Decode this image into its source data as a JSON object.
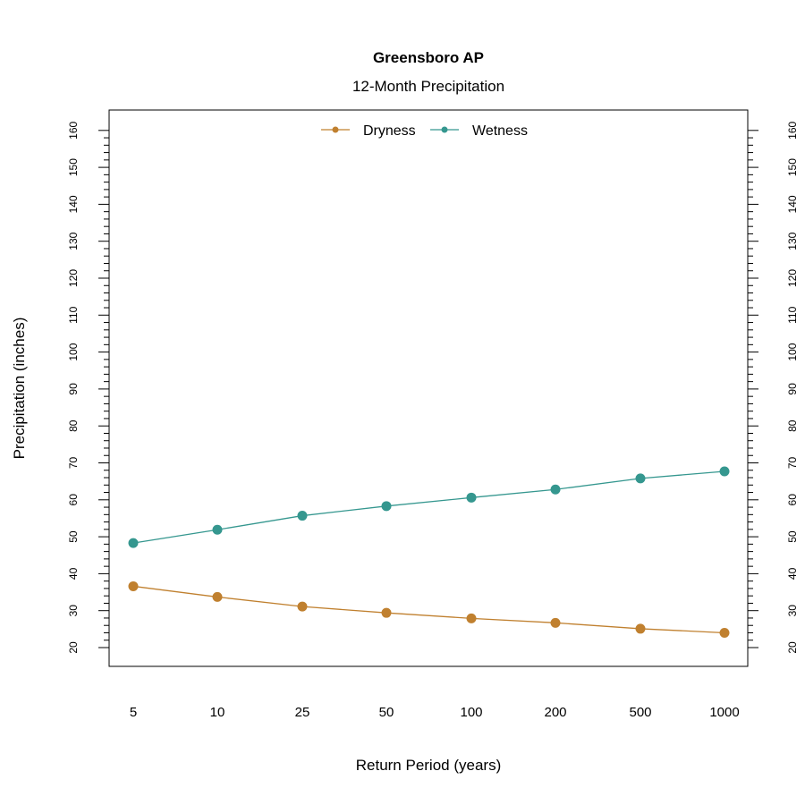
{
  "chart_data": {
    "type": "line",
    "title": "Greensboro  AP",
    "subtitle": "12-Month Precipitation",
    "xlabel": "Return Period (years)",
    "ylabel": "Precipitation (inches)",
    "categories": [
      "5",
      "10",
      "25",
      "50",
      "100",
      "200",
      "500",
      "1000"
    ],
    "ylim": [
      20,
      160
    ],
    "y_ticks": [
      "20",
      "30",
      "40",
      "50",
      "60",
      "70",
      "80",
      "90",
      "100",
      "110",
      "120",
      "130",
      "140",
      "150",
      "160"
    ],
    "y_axis_right": true,
    "grid": false,
    "legend_position": "top-center",
    "series": [
      {
        "name": "Dryness",
        "color": "#C0802F",
        "values": [
          36.6,
          33.7,
          31.1,
          29.4,
          27.9,
          26.7,
          25.1,
          24.0
        ]
      },
      {
        "name": "Wetness",
        "color": "#35978F",
        "values": [
          48.3,
          51.9,
          55.7,
          58.3,
          60.6,
          62.8,
          65.8,
          67.7
        ]
      }
    ]
  }
}
